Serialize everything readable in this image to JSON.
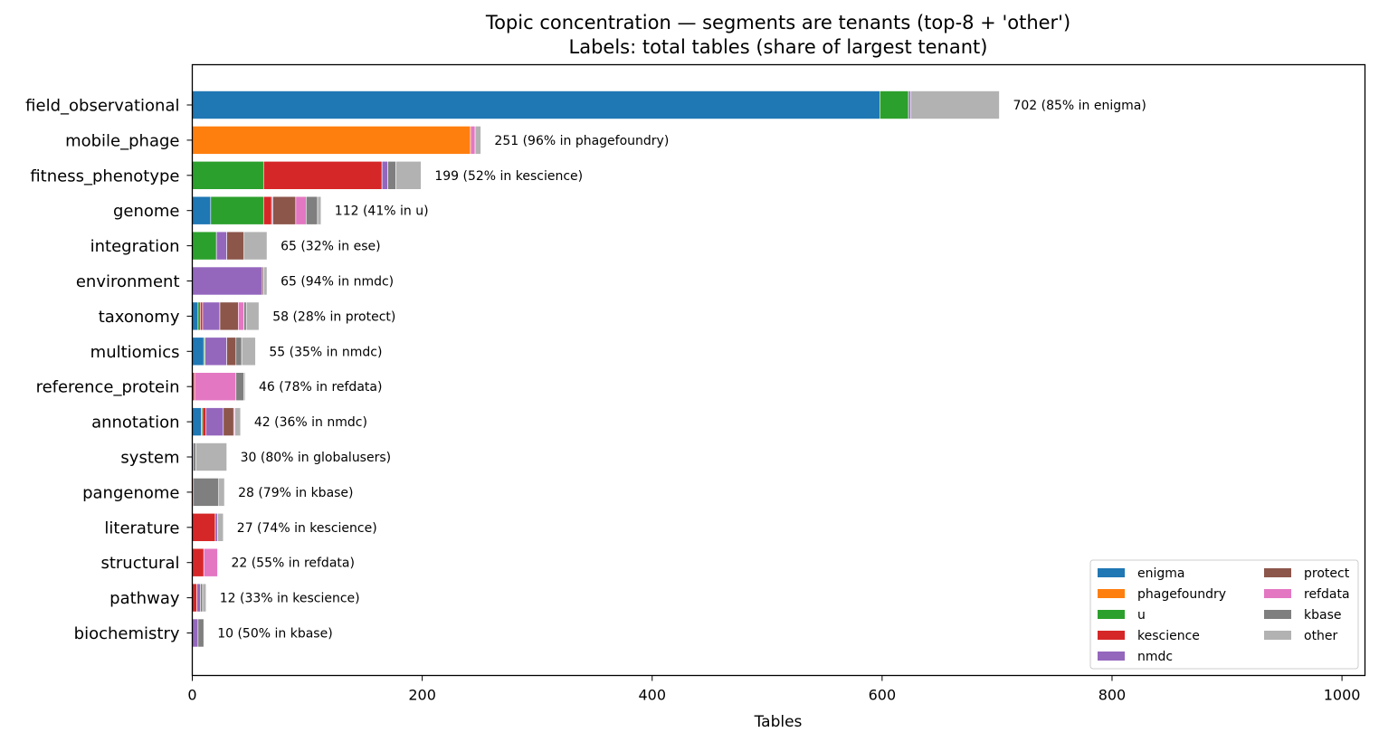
{
  "chart_data": {
    "type": "bar",
    "orientation": "horizontal",
    "stacked": true,
    "title": "Topic concentration — segments are tenants (top-8 + 'other')",
    "subtitle": "Labels: total tables  (share of largest tenant)",
    "xlabel": "Tables",
    "ylabel": "",
    "xlim": [
      0,
      1020
    ],
    "xticks": [
      0,
      200,
      400,
      600,
      800,
      1000
    ],
    "grid": false,
    "legend_position": "bottom-right",
    "legend_columns": 2,
    "categories": [
      "field_observational",
      "mobile_phage",
      "fitness_phenotype",
      "genome",
      "integration",
      "environment",
      "taxonomy",
      "multiomics",
      "reference_protein",
      "annotation",
      "system",
      "pangenome",
      "literature",
      "structural",
      "pathway",
      "biochemistry"
    ],
    "labels": [
      "702  (85% in enigma)",
      "251  (96% in phagefoundry)",
      "199  (52% in kescience)",
      "112  (41% in u)",
      "65  (32% in ese)",
      "65  (94% in nmdc)",
      "58  (28% in protect)",
      "55  (35% in nmdc)",
      "46  (78% in refdata)",
      "42  (36% in nmdc)",
      "30  (80% in globalusers)",
      "28  (79% in kbase)",
      "27  (74% in kescience)",
      "22  (55% in refdata)",
      "12  (33% in kescience)",
      "10  (50% in kbase)"
    ],
    "series": [
      {
        "name": "enigma",
        "color": "#1f77b4",
        "values": [
          598,
          0,
          0,
          16,
          0,
          0,
          5,
          10,
          0,
          8,
          0,
          0,
          0,
          0,
          0,
          0
        ]
      },
      {
        "name": "phagefoundry",
        "color": "#ff7f0e",
        "values": [
          0,
          242,
          0,
          0,
          0,
          0,
          0,
          0,
          0,
          0,
          0,
          0,
          0,
          0,
          0,
          0
        ]
      },
      {
        "name": "u",
        "color": "#2ca02c",
        "values": [
          25,
          0,
          62,
          46,
          21,
          0,
          2,
          1,
          0,
          1,
          0,
          0,
          0,
          0,
          0,
          0
        ]
      },
      {
        "name": "kescience",
        "color": "#d62728",
        "values": [
          0,
          0,
          103,
          7,
          0,
          0,
          2,
          0,
          2,
          3,
          0,
          1,
          20,
          10,
          4,
          0
        ]
      },
      {
        "name": "nmdc",
        "color": "#9467bd",
        "values": [
          2,
          0,
          5,
          1,
          9,
          61,
          15,
          19,
          0,
          15,
          1,
          0,
          2,
          0,
          3,
          5
        ]
      },
      {
        "name": "protect",
        "color": "#8c564b",
        "values": [
          0,
          0,
          0,
          20,
          15,
          1,
          16,
          8,
          0,
          9,
          0,
          0,
          0,
          0,
          0,
          0
        ]
      },
      {
        "name": "refdata",
        "color": "#e377c2",
        "values": [
          0,
          4,
          0,
          9,
          0,
          0,
          5,
          0,
          36,
          1,
          0,
          0,
          0,
          12,
          0,
          0
        ]
      },
      {
        "name": "kbase",
        "color": "#7f7f7f",
        "values": [
          0,
          0,
          7,
          10,
          0,
          0,
          2,
          5,
          7,
          0,
          2,
          22,
          0,
          0,
          2,
          5
        ]
      },
      {
        "name": "other",
        "color": "#b2b2b2",
        "values": [
          77,
          5,
          22,
          3,
          20,
          3,
          11,
          12,
          1,
          5,
          27,
          5,
          5,
          0,
          3,
          0
        ]
      }
    ]
  }
}
